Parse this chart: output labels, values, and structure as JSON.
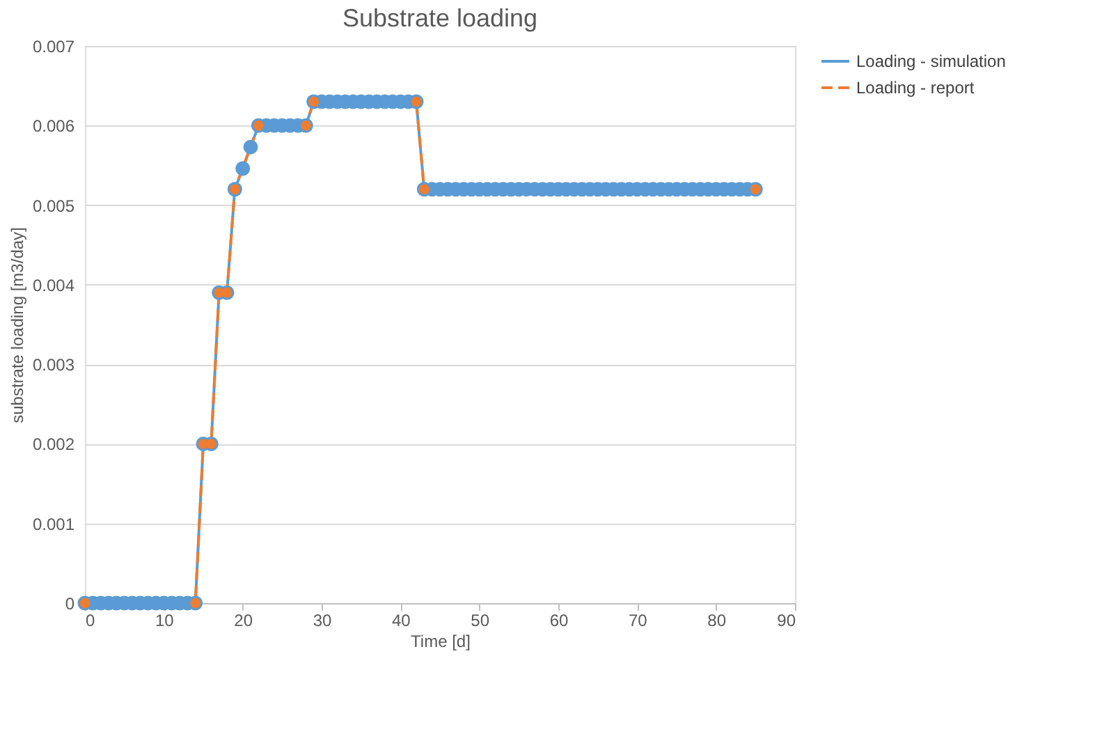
{
  "chart_data": {
    "type": "line",
    "title": "Substrate loading",
    "xlabel": "Time [d]",
    "ylabel": "substrate loading [m3/day]",
    "series": [
      {
        "name": "Loading - simulation",
        "color": "#5b9bd5",
        "line_style": "solid",
        "marker": "circle",
        "x": [
          0,
          1,
          2,
          3,
          4,
          5,
          6,
          7,
          8,
          9,
          10,
          11,
          12,
          13,
          14,
          15,
          16,
          17,
          18,
          19,
          20,
          21,
          22,
          23,
          24,
          25,
          26,
          27,
          28,
          29,
          30,
          31,
          32,
          33,
          34,
          35,
          36,
          37,
          38,
          39,
          40,
          41,
          42,
          43,
          44,
          45,
          46,
          47,
          48,
          49,
          50,
          51,
          52,
          53,
          54,
          55,
          56,
          57,
          58,
          59,
          60,
          61,
          62,
          63,
          64,
          65,
          66,
          67,
          68,
          69,
          70,
          71,
          72,
          73,
          74,
          75,
          76,
          77,
          78,
          79,
          80,
          81,
          82,
          83,
          84,
          85
        ],
        "values": [
          0,
          0,
          0,
          0,
          0,
          0,
          0,
          0,
          0,
          0,
          0,
          0,
          0,
          0,
          0,
          0.002,
          0.002,
          0.0039,
          0.0039,
          0.0052,
          0.00546,
          0.00573,
          0.006,
          0.006,
          0.006,
          0.006,
          0.006,
          0.006,
          0.006,
          0.0063,
          0.0063,
          0.0063,
          0.0063,
          0.0063,
          0.0063,
          0.0063,
          0.0063,
          0.0063,
          0.0063,
          0.0063,
          0.0063,
          0.0063,
          0.0063,
          0.0052,
          0.0052,
          0.0052,
          0.0052,
          0.0052,
          0.0052,
          0.0052,
          0.0052,
          0.0052,
          0.0052,
          0.0052,
          0.0052,
          0.0052,
          0.0052,
          0.0052,
          0.0052,
          0.0052,
          0.0052,
          0.0052,
          0.0052,
          0.0052,
          0.0052,
          0.0052,
          0.0052,
          0.0052,
          0.0052,
          0.0052,
          0.0052,
          0.0052,
          0.0052,
          0.0052,
          0.0052,
          0.0052,
          0.0052,
          0.0052,
          0.0052,
          0.0052,
          0.0052,
          0.0052,
          0.0052,
          0.0052,
          0.0052,
          0.0052
        ]
      },
      {
        "name": "Loading - report",
        "color": "#ed7d31",
        "line_style": "dashed",
        "marker": "circle",
        "x": [
          0,
          14,
          15,
          16,
          17,
          18,
          19,
          22,
          28,
          29,
          42,
          43,
          85
        ],
        "values": [
          0,
          0,
          0.002,
          0.002,
          0.0039,
          0.0039,
          0.0052,
          0.006,
          0.006,
          0.0063,
          0.0063,
          0.0052,
          0.0052
        ]
      }
    ],
    "xlim": [
      0,
      90
    ],
    "xticks": [
      0,
      10,
      20,
      30,
      40,
      50,
      60,
      70,
      80,
      90
    ],
    "ylim": [
      0,
      0.007
    ],
    "yticks": [
      0,
      0.001,
      0.002,
      0.003,
      0.004,
      0.005,
      0.006,
      0.007
    ],
    "grid": "y",
    "legend": "right"
  }
}
